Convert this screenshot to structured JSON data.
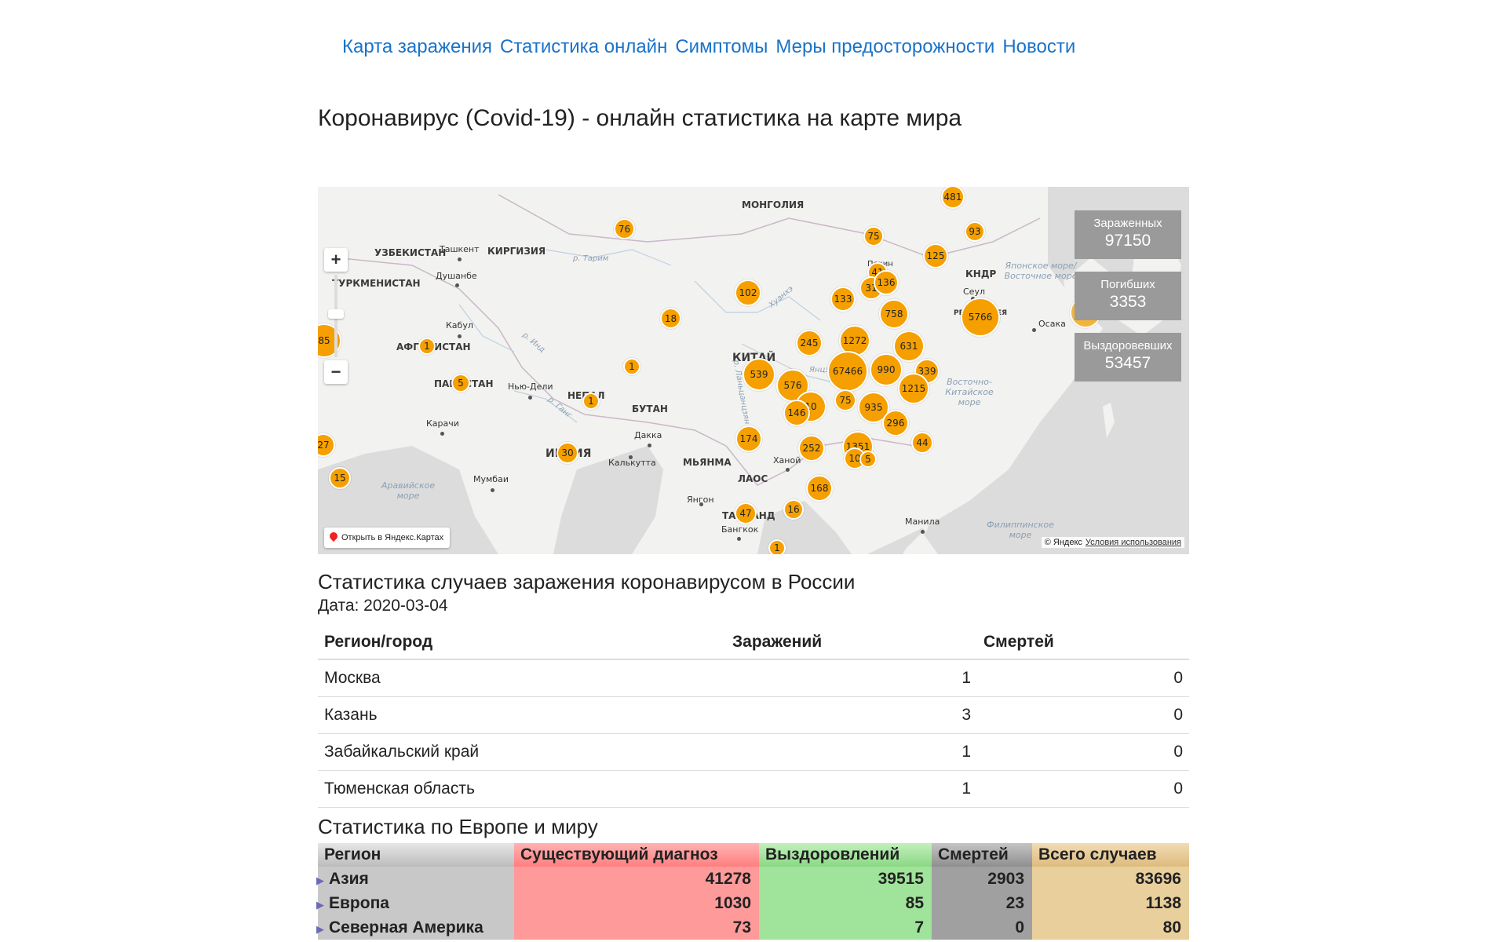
{
  "nav": [
    "Карта заражения",
    "Статистика онлайн",
    "Симптомы",
    "Меры предосторожности",
    "Новости"
  ],
  "page_title": "Коронавирус (Covid-19) - онлайн статистика на карте мира",
  "map": {
    "stats": [
      {
        "label": "Зараженных",
        "value": "97150"
      },
      {
        "label": "Погибших",
        "value": "3353"
      },
      {
        "label": "Выздоровевших",
        "value": "53457"
      }
    ],
    "open_label": "Открыть в Яндекс.Картах",
    "copyright": "© Яндекс",
    "terms": "Условия использования",
    "country_labels": [
      "МОНГОЛИЯ",
      "УЗБЕКИСТАН",
      "КИРГИЗИЯ",
      "ТУРКМЕНИСТАН",
      "АФГАНИСТАН",
      "ПАКИСТАН",
      "НЕПАЛ",
      "БУТАН",
      "КИТАЙ",
      "ИНДИЯ",
      "МЬЯНМА",
      "ЛАОС",
      "ТАИЛАНД",
      "КНДР",
      "РЕСП. КОРЕЯ"
    ],
    "city_labels": [
      "Ташкент",
      "Душанбе",
      "Кабул",
      "Нью-Дели",
      "Карачи",
      "Дакка",
      "Калькутта",
      "Мумбаи",
      "Ханой",
      "Янгон",
      "Бангкок",
      "Манила",
      "Сеул",
      "Осака",
      "Пекин"
    ],
    "sea_labels": [
      "Японское море/Восточное море",
      "Восточно-Китайское море",
      "Аравийское море",
      "Филиппинское море"
    ],
    "river_labels": [
      "р. Тарим",
      "Хуанхэ",
      "р. Инд",
      "р. Ганг",
      "р. Ланьцанцзян",
      "Янцзы"
    ],
    "clusters": [
      "481",
      "76",
      "75",
      "93",
      "125",
      "41",
      "31",
      "136",
      "102",
      "133",
      "758",
      "5766",
      "1000",
      "18",
      "245",
      "1272",
      "631",
      "85",
      "1",
      "67466",
      "990",
      "339",
      "1",
      "539",
      "576",
      "1215",
      "5",
      "1",
      "10",
      "75",
      "935",
      "146",
      "296",
      "27",
      "174",
      "252",
      "1351",
      "44",
      "30",
      "10",
      "5",
      "15",
      "168",
      "47",
      "16",
      "1"
    ]
  },
  "russia": {
    "title": "Статистика случаев заражения коронавирусом в России",
    "date": "Дата: 2020-03-04",
    "headers": [
      "Регион/город",
      "Заражений",
      "Смертей"
    ],
    "rows": [
      {
        "region": "Москва",
        "cases": "1",
        "deaths": "0"
      },
      {
        "region": "Казань",
        "cases": "3",
        "deaths": "0"
      },
      {
        "region": "Забайкальский край",
        "cases": "1",
        "deaths": "0"
      },
      {
        "region": "Тюменская область",
        "cases": "1",
        "deaths": "0"
      }
    ]
  },
  "world": {
    "title": "Статистика по Европе и миру",
    "headers": [
      "Регион",
      "Существующий диагноз",
      "Выздоровлений",
      "Смертей",
      "Всего случаев"
    ],
    "rows": [
      {
        "region": "Азия",
        "active": "41278",
        "recovered": "39515",
        "deaths": "2903",
        "total": "83696"
      },
      {
        "region": "Европа",
        "active": "1030",
        "recovered": "85",
        "deaths": "23",
        "total": "1138"
      },
      {
        "region": "Северная Америка",
        "active": "73",
        "recovered": "7",
        "deaths": "0",
        "total": "80"
      }
    ],
    "colors": {
      "region": "#c8c8c8",
      "active": "#ff9a9a",
      "recovered": "#a0e39a",
      "deaths": "#a0a0a0",
      "total": "#e9cf9c"
    }
  }
}
